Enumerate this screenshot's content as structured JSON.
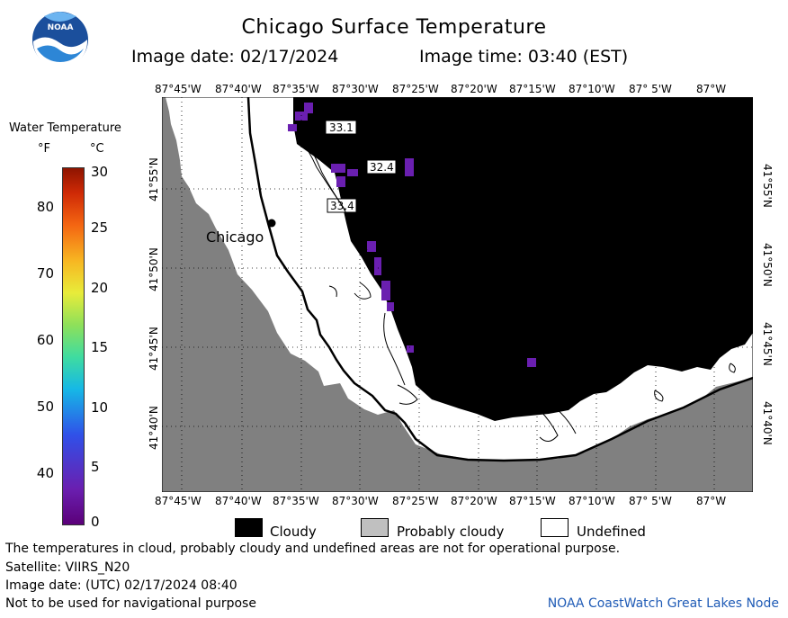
{
  "header": {
    "title": "Chicago Surface Temperature",
    "image_date": "Image date: 02/17/2024",
    "image_time": "Image time: 03:40 (EST)",
    "logo_text": "NOAA"
  },
  "map": {
    "longitude_labels": [
      "87°45'W",
      "87°40'W",
      "87°35'W",
      "87°30'W",
      "87°25'W",
      "87°20'W",
      "87°15'W",
      "87°10'W",
      "87° 5'W",
      "87°W"
    ],
    "latitude_labels": [
      "41°55'N",
      "41°50'N",
      "41°45'N",
      "41°40'N"
    ],
    "city_label": "Chicago",
    "temperature_labels": [
      "33.1",
      "32.4",
      "33.4"
    ]
  },
  "legend": {
    "title": "Water Temperature",
    "unit_f": "°F",
    "unit_c": "°C",
    "f_ticks": [
      "80",
      "70",
      "60",
      "50",
      "40"
    ],
    "c_ticks": [
      "30",
      "25",
      "20",
      "15",
      "10",
      "5",
      "0"
    ],
    "colorbar_range_c": [
      0,
      30
    ],
    "colors": {
      "land": "#808080",
      "cloudy": "#000000",
      "probably_cloudy": "#c0c0c0",
      "undefined": "#ffffff",
      "cold_water": "#6a1fb0"
    },
    "categories": [
      "Cloudy",
      "Probably cloudy",
      "Undefined"
    ]
  },
  "footer": {
    "disclaimer": "The temperatures in cloud, probably cloudy and undefined areas are not for operational purpose.",
    "satellite": "Satellite: VIIRS_N20",
    "utc_date": "Image date: (UTC) 02/17/2024  08:40",
    "navigation": "Not to be used for navigational purpose",
    "node": "NOAA CoastWatch Great Lakes Node"
  }
}
